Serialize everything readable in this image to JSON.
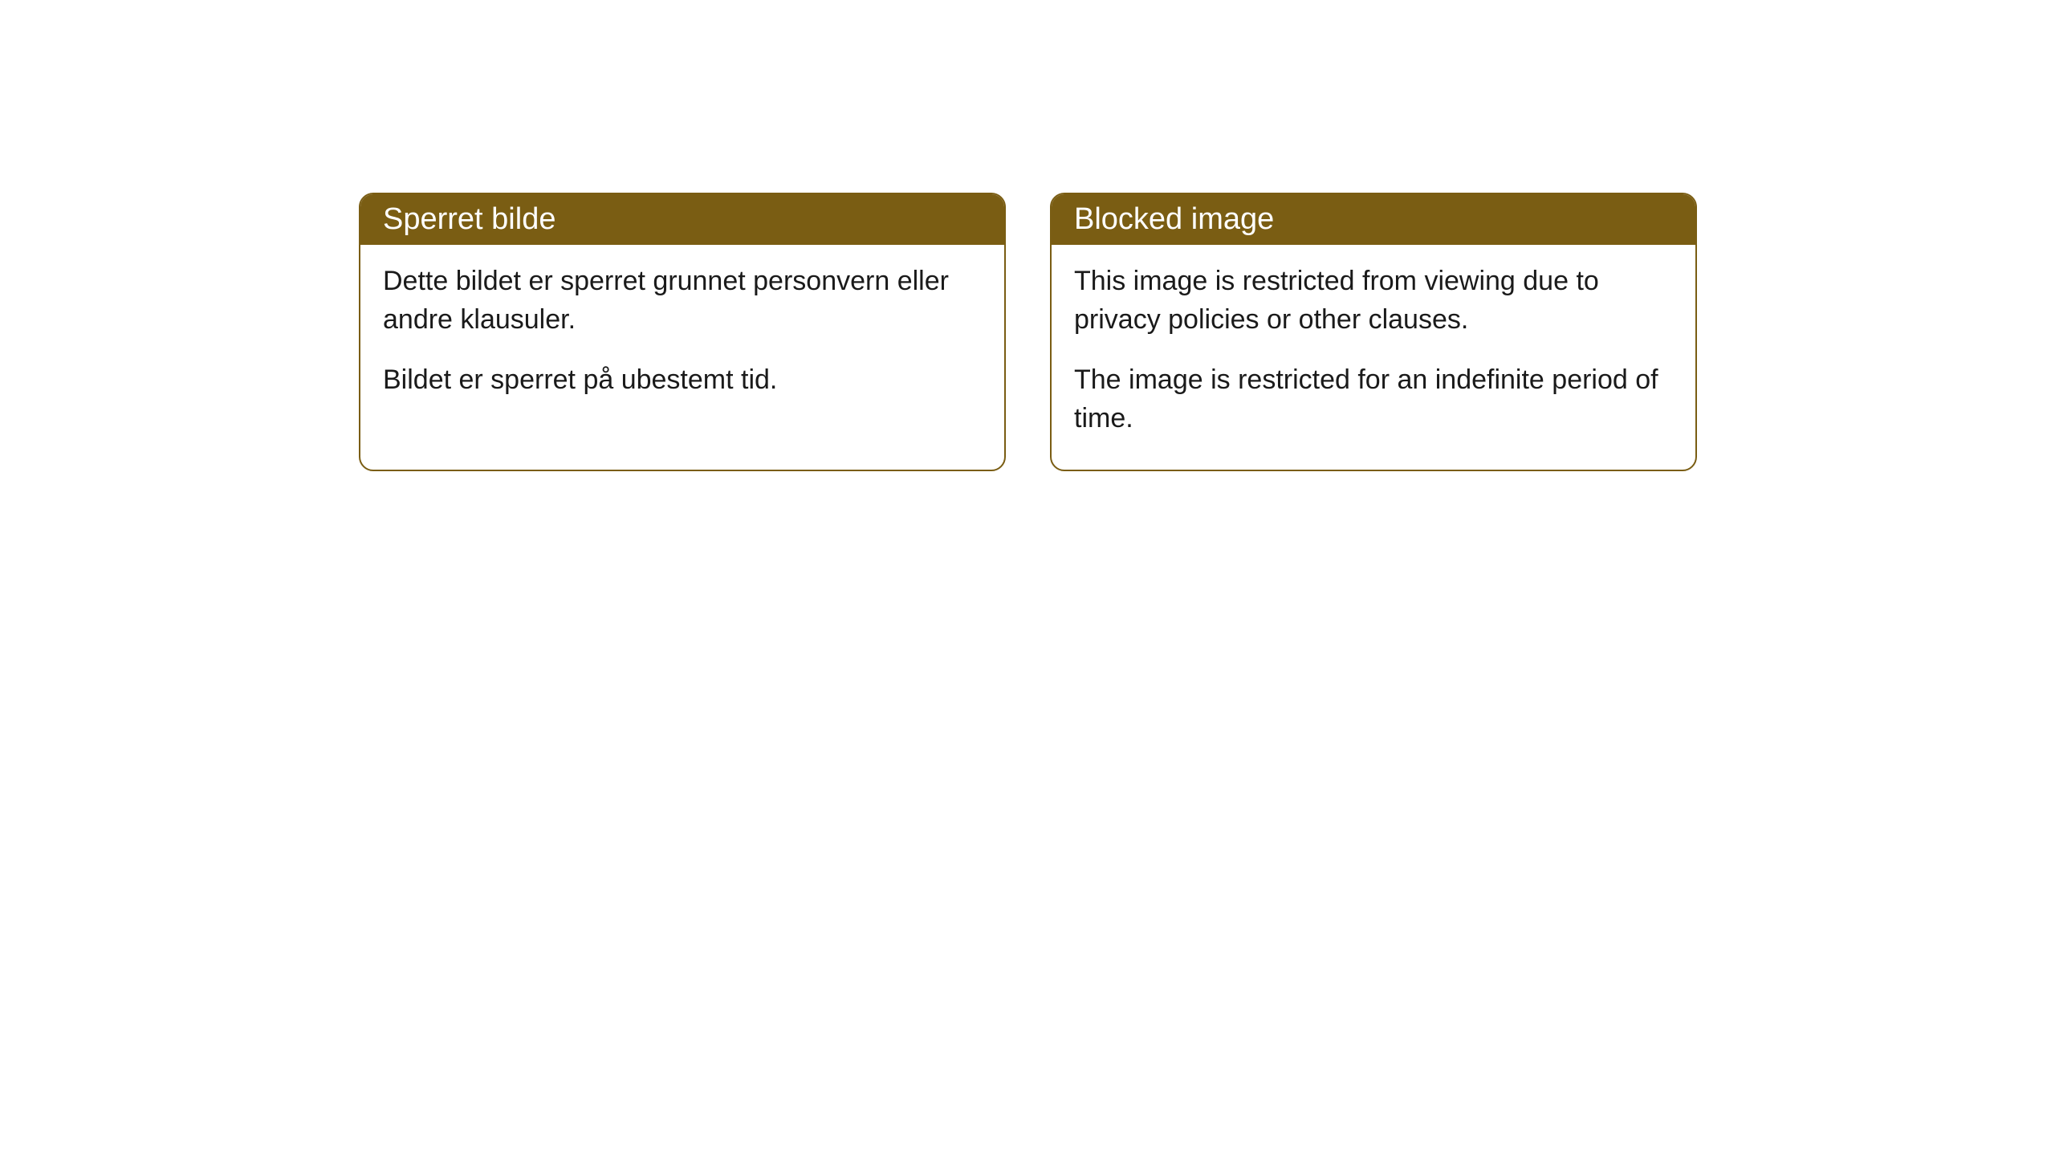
{
  "cards": [
    {
      "title": "Sperret bilde",
      "paragraph1": "Dette bildet er sperret grunnet personvern eller andre klausuler.",
      "paragraph2": "Bildet er sperret på ubestemt tid."
    },
    {
      "title": "Blocked image",
      "paragraph1": "This image is restricted from viewing due to privacy policies or other clauses.",
      "paragraph2": "The image is restricted for an indefinite period of time."
    }
  ],
  "styling": {
    "header_background": "#7a5d13",
    "header_text_color": "#ffffff",
    "border_color": "#7a5d13",
    "body_background": "#ffffff",
    "body_text_color": "#1a1a1a",
    "border_radius": 18,
    "title_fontsize": 38,
    "body_fontsize": 34
  }
}
